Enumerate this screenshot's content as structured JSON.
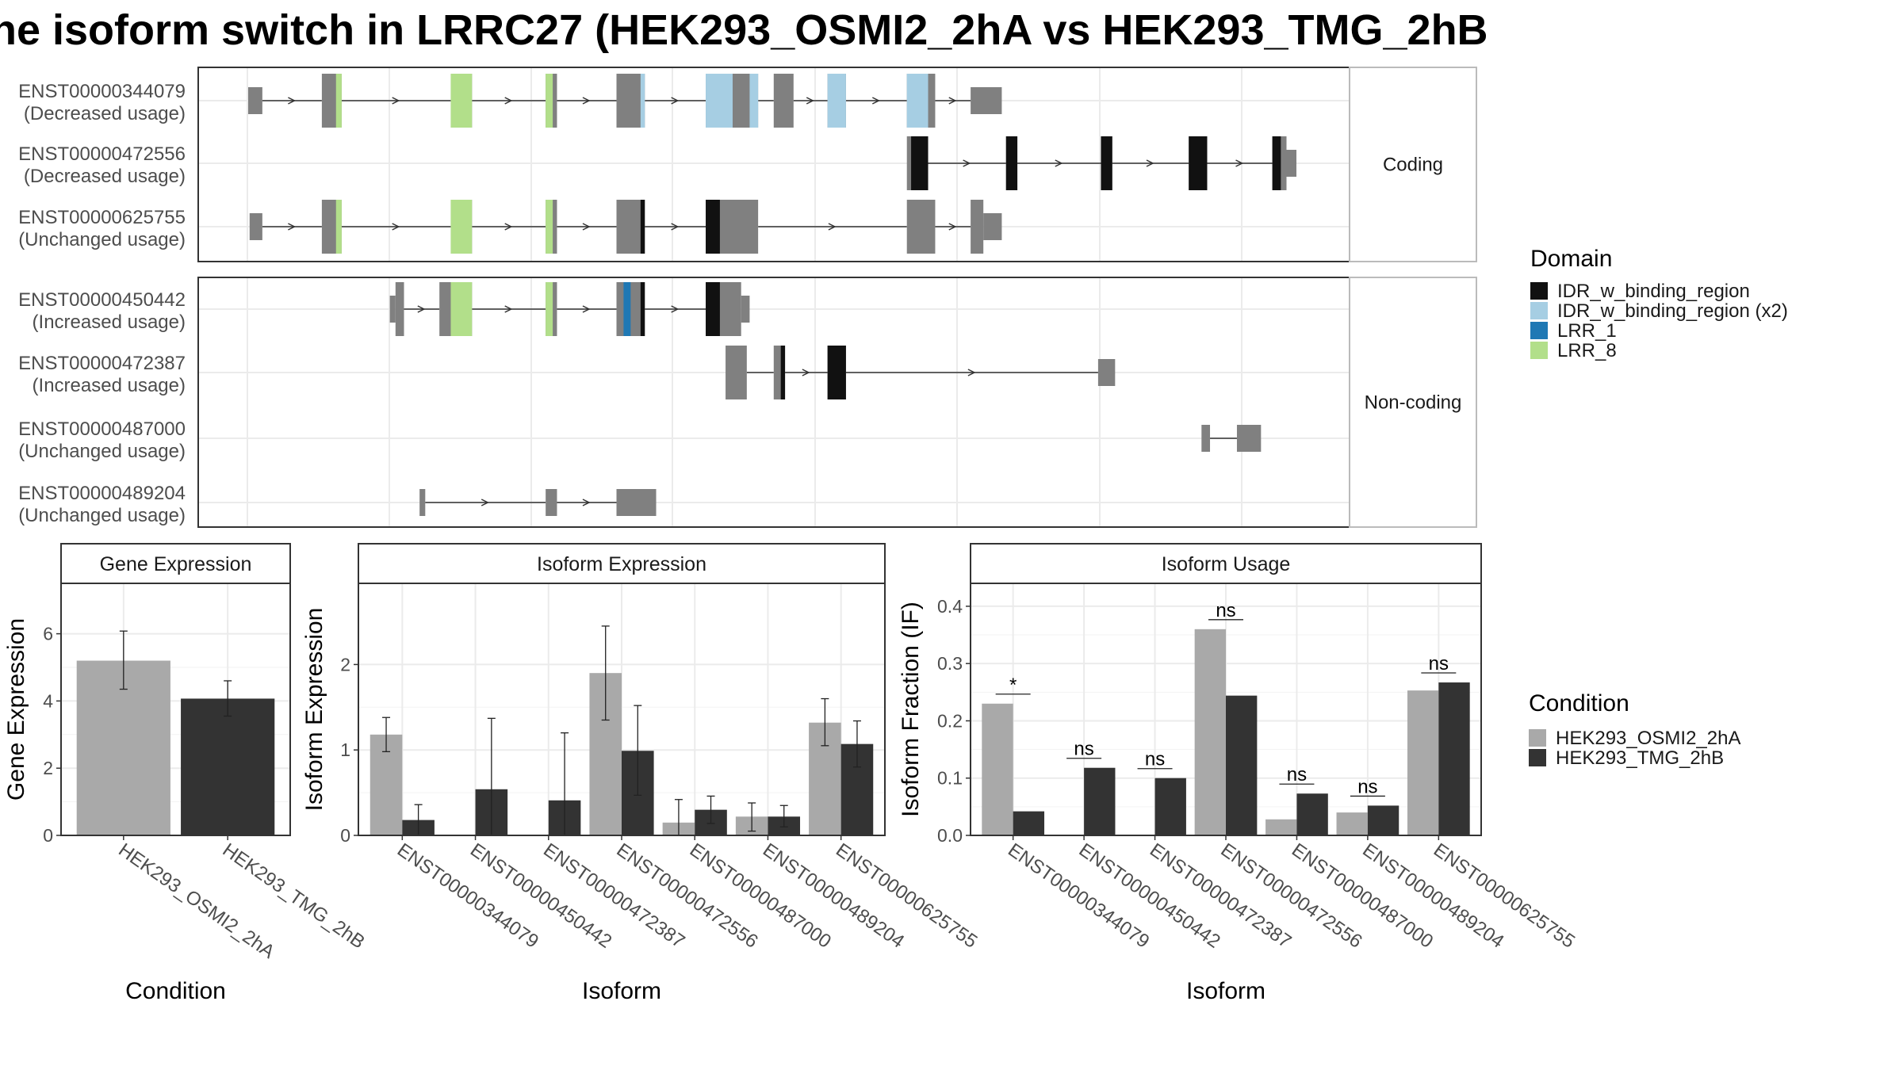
{
  "title": "he isoform switch in LRRC27 (HEK293_OSMI2_2hA vs HEK293_TMG_2hB",
  "colors": {
    "exon": "#808080",
    "IDR_w_binding_region": "#111111",
    "IDR_w_binding_region (x2)": "#a6cee3",
    "LRR_1": "#1f78b4",
    "LRR_8": "#b2df8a",
    "cond1": "#a9a9a9",
    "cond2": "#333333"
  },
  "structure": {
    "groups": [
      {
        "label": "Coding",
        "transcripts": [
          {
            "name": "ENST00000344079",
            "usage": "(Decreased usage)",
            "exons": [
              {
                "s": 0.0,
                "e": 1.0,
                "utr": true
              },
              {
                "s": 5.2,
                "e": 6.6
              },
              {
                "s": 14.3,
                "e": 15.8
              },
              {
                "s": 21.0,
                "e": 21.8
              },
              {
                "s": 26.0,
                "e": 28.0
              },
              {
                "s": 32.3,
                "e": 36.0
              },
              {
                "s": 37.1,
                "e": 38.5
              },
              {
                "s": 40.9,
                "e": 42.2
              },
              {
                "s": 46.5,
                "e": 48.5
              },
              {
                "s": 51.0,
                "e": 53.2,
                "utr": true
              }
            ],
            "domains": [
              {
                "s": 6.2,
                "e": 6.6,
                "d": "LRR_8"
              },
              {
                "s": 14.3,
                "e": 15.8,
                "d": "LRR_8"
              },
              {
                "s": 21.0,
                "e": 21.5,
                "d": "LRR_8"
              },
              {
                "s": 27.7,
                "e": 28.0,
                "d": "IDR_w_binding_region (x2)"
              },
              {
                "s": 32.3,
                "e": 34.2,
                "d": "IDR_w_binding_region (x2)"
              },
              {
                "s": 35.4,
                "e": 36.0,
                "d": "IDR_w_binding_region (x2)"
              },
              {
                "s": 40.9,
                "e": 42.2,
                "d": "IDR_w_binding_region (x2)"
              },
              {
                "s": 46.5,
                "e": 48.0,
                "d": "IDR_w_binding_region (x2)"
              }
            ]
          },
          {
            "name": "ENST00000472556",
            "usage": "(Decreased usage)",
            "exons": [
              {
                "s": 46.5,
                "e": 48.0
              },
              {
                "s": 53.5,
                "e": 54.3
              },
              {
                "s": 60.2,
                "e": 61.0
              },
              {
                "s": 66.4,
                "e": 67.7
              },
              {
                "s": 72.3,
                "e": 73.3
              },
              {
                "s": 73.3,
                "e": 74.0,
                "utr": true
              }
            ],
            "domains": [
              {
                "s": 46.8,
                "e": 48.0,
                "d": "IDR_w_binding_region"
              },
              {
                "s": 53.5,
                "e": 54.3,
                "d": "IDR_w_binding_region"
              },
              {
                "s": 60.2,
                "e": 61.0,
                "d": "IDR_w_binding_region"
              },
              {
                "s": 66.4,
                "e": 67.7,
                "d": "IDR_w_binding_region"
              },
              {
                "s": 72.3,
                "e": 72.9,
                "d": "IDR_w_binding_region"
              }
            ]
          },
          {
            "name": "ENST00000625755",
            "usage": "(Unchanged usage)",
            "exons": [
              {
                "s": 0.1,
                "e": 1.0,
                "utr": true
              },
              {
                "s": 5.2,
                "e": 6.6
              },
              {
                "s": 14.3,
                "e": 15.8
              },
              {
                "s": 21.0,
                "e": 21.8
              },
              {
                "s": 26.0,
                "e": 28.0
              },
              {
                "s": 32.3,
                "e": 36.0
              },
              {
                "s": 46.5,
                "e": 48.5
              },
              {
                "s": 51.0,
                "e": 51.9
              },
              {
                "s": 51.9,
                "e": 53.2,
                "utr": true
              }
            ],
            "domains": [
              {
                "s": 6.2,
                "e": 6.6,
                "d": "LRR_8"
              },
              {
                "s": 14.3,
                "e": 15.8,
                "d": "LRR_8"
              },
              {
                "s": 21.0,
                "e": 21.5,
                "d": "LRR_8"
              },
              {
                "s": 27.7,
                "e": 28.0,
                "d": "IDR_w_binding_region"
              },
              {
                "s": 32.3,
                "e": 33.3,
                "d": "IDR_w_binding_region"
              }
            ]
          }
        ]
      },
      {
        "label": "Non-coding",
        "transcripts": [
          {
            "name": "ENST00000450442",
            "usage": "(Increased usage)",
            "exons": [
              {
                "s": 10.0,
                "e": 10.4,
                "utr": true
              },
              {
                "s": 10.4,
                "e": 11.0
              },
              {
                "s": 13.5,
                "e": 15.8
              },
              {
                "s": 21.0,
                "e": 21.8
              },
              {
                "s": 26.0,
                "e": 28.0
              },
              {
                "s": 32.3,
                "e": 34.8
              },
              {
                "s": 34.8,
                "e": 35.4,
                "utr": true
              }
            ],
            "domains": [
              {
                "s": 14.3,
                "e": 15.8,
                "d": "LRR_8"
              },
              {
                "s": 21.0,
                "e": 21.5,
                "d": "LRR_8"
              },
              {
                "s": 26.5,
                "e": 27.0,
                "d": "LRR_1"
              },
              {
                "s": 27.7,
                "e": 28.0,
                "d": "IDR_w_binding_region"
              },
              {
                "s": 32.3,
                "e": 33.3,
                "d": "IDR_w_binding_region"
              }
            ]
          },
          {
            "name": "ENST00000472387",
            "usage": "(Increased usage)",
            "exons": [
              {
                "s": 33.7,
                "e": 35.2
              },
              {
                "s": 37.1,
                "e": 37.9
              },
              {
                "s": 40.9,
                "e": 42.2
              },
              {
                "s": 60.0,
                "e": 61.2,
                "utr": true
              }
            ],
            "domains": [
              {
                "s": 37.6,
                "e": 37.9,
                "d": "IDR_w_binding_region"
              },
              {
                "s": 40.9,
                "e": 42.2,
                "d": "IDR_w_binding_region"
              }
            ]
          },
          {
            "name": "ENST00000487000",
            "usage": "(Unchanged usage)",
            "exons": [
              {
                "s": 67.3,
                "e": 67.9,
                "utr": true
              },
              {
                "s": 69.8,
                "e": 71.5,
                "utr": true
              }
            ],
            "domains": []
          },
          {
            "name": "ENST00000489204",
            "usage": "(Unchanged usage)",
            "exons": [
              {
                "s": 12.1,
                "e": 12.5,
                "utr": true
              },
              {
                "s": 21.0,
                "e": 21.8,
                "utr": true
              },
              {
                "s": 26.0,
                "e": 28.8,
                "utr": true
              }
            ],
            "domains": []
          }
        ]
      }
    ]
  },
  "legend_domain": {
    "title": "Domain",
    "items": [
      "IDR_w_binding_region",
      "IDR_w_binding_region (x2)",
      "LRR_1",
      "LRR_8"
    ]
  },
  "legend_condition": {
    "title": "Condition",
    "items": [
      "HEK293_OSMI2_2hA",
      "HEK293_TMG_2hB"
    ]
  },
  "chart_data": [
    {
      "type": "bar",
      "title": "Gene Expression",
      "xlabel": "Condition",
      "ylabel": "Gene Expression",
      "ylim": [
        0,
        7.5
      ],
      "yticks": [
        0,
        2,
        4,
        6
      ],
      "categories": [
        "HEK293_OSMI2_2hA",
        "HEK293_TMG_2hB"
      ],
      "values": [
        5.2,
        4.07
      ],
      "errors": [
        [
          4.35,
          6.08
        ],
        [
          3.55,
          4.6
        ]
      ]
    },
    {
      "type": "bar",
      "title": "Isoform Expression",
      "xlabel": "Isoform",
      "ylabel": "Isoform Expression",
      "ylim": [
        0,
        2.95
      ],
      "yticks": [
        0,
        1,
        2
      ],
      "categories": [
        "ENST00000344079",
        "ENST00000450442",
        "ENST00000472387",
        "ENST00000472556",
        "ENST00000487000",
        "ENST00000489204",
        "ENST00000625755"
      ],
      "series": [
        {
          "name": "HEK293_OSMI2_2hA",
          "values": [
            1.18,
            0.0,
            0.0,
            1.9,
            0.15,
            0.22,
            1.32
          ],
          "errors": [
            [
              0.98,
              1.38
            ],
            [
              0,
              0
            ],
            [
              0,
              0
            ],
            [
              1.35,
              2.45
            ],
            [
              0,
              0.42
            ],
            [
              0.05,
              0.38
            ],
            [
              1.05,
              1.6
            ]
          ]
        },
        {
          "name": "HEK293_TMG_2hB",
          "values": [
            0.18,
            0.54,
            0.41,
            0.99,
            0.3,
            0.22,
            1.07
          ],
          "errors": [
            [
              0,
              0.36
            ],
            [
              0,
              1.37
            ],
            [
              0,
              1.2
            ],
            [
              0.47,
              1.52
            ],
            [
              0.14,
              0.46
            ],
            [
              0.1,
              0.35
            ],
            [
              0.8,
              1.34
            ]
          ]
        }
      ]
    },
    {
      "type": "bar",
      "title": "Isoform Usage",
      "xlabel": "Isoform",
      "ylabel": "Isoform Fraction (IF)",
      "ylim": [
        0,
        0.44
      ],
      "yticks": [
        0.0,
        0.1,
        0.2,
        0.3,
        0.4
      ],
      "ytick_labels": [
        "0.0",
        "0.1",
        "0.2",
        "0.3",
        "0.4"
      ],
      "categories": [
        "ENST00000344079",
        "ENST00000450442",
        "ENST00000472387",
        "ENST00000472556",
        "ENST00000487000",
        "ENST00000489204",
        "ENST00000625755"
      ],
      "series": [
        {
          "name": "HEK293_OSMI2_2hA",
          "values": [
            0.23,
            0.0,
            0.0,
            0.36,
            0.028,
            0.04,
            0.253
          ]
        },
        {
          "name": "HEK293_TMG_2hB",
          "values": [
            0.042,
            0.118,
            0.1,
            0.244,
            0.073,
            0.052,
            0.267
          ]
        }
      ],
      "significance": [
        "*",
        "ns",
        "ns",
        "ns",
        "ns",
        "ns",
        "ns"
      ]
    }
  ]
}
